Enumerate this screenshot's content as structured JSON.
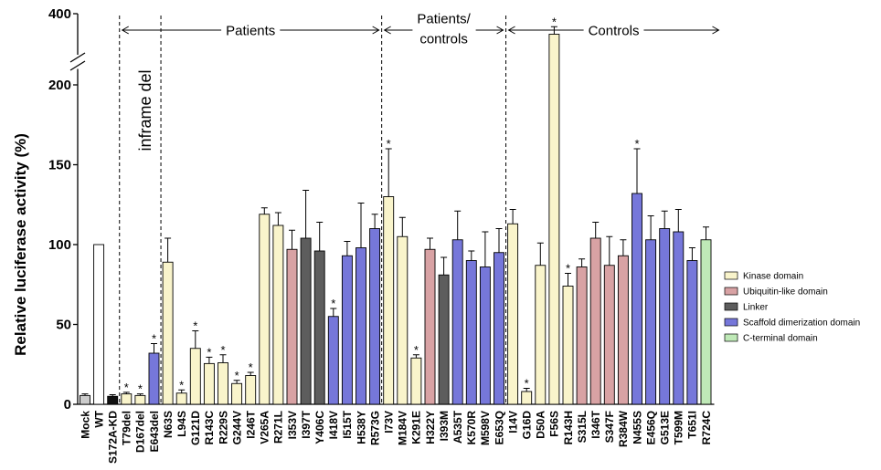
{
  "chart_data": {
    "type": "bar",
    "title": "",
    "xlabel": "",
    "ylabel": "Relative luciferase activity (%)",
    "ylim": [
      0,
      210
    ],
    "ylim_upper": [
      340,
      400
    ],
    "axis_break": true,
    "yticks": [
      0,
      50,
      100,
      150,
      200,
      400
    ],
    "grid": false,
    "legend_position": "right",
    "categories": [
      "Mock",
      "WT",
      "S172A-KD",
      "T79del",
      "D167del",
      "E643del",
      "N63S",
      "L94S",
      "G121D",
      "R143C",
      "R229S",
      "G244V",
      "I246T",
      "V265A",
      "R271L",
      "I353V",
      "I397T",
      "Y406C",
      "I418V",
      "I515T",
      "H538Y",
      "R573G",
      "I73V",
      "M184V",
      "K291E",
      "H322Y",
      "I393M",
      "A535T",
      "K570R",
      "M598V",
      "E653Q",
      "I14V",
      "G16D",
      "D50A",
      "F56S",
      "R143H",
      "S315L",
      "I346T",
      "S347F",
      "R384W",
      "N455S",
      "E456Q",
      "G513E",
      "T599M",
      "T651I",
      "R724C"
    ],
    "values": [
      5.5,
      100,
      5,
      6.5,
      5.5,
      32,
      89,
      7,
      35,
      25.5,
      26,
      13,
      18,
      119,
      112,
      97,
      104,
      96,
      55,
      93,
      98,
      110,
      130,
      105,
      29,
      97,
      81,
      103,
      90,
      86,
      95,
      113,
      8,
      87,
      370,
      74,
      86,
      104,
      87,
      93,
      132,
      103,
      110,
      108,
      90,
      103
    ],
    "errors": [
      1,
      0,
      1,
      1,
      1,
      6,
      15,
      2,
      11,
      4,
      5,
      2,
      2,
      4,
      8,
      12,
      30,
      18,
      5,
      9,
      28,
      9,
      30,
      12,
      2,
      7,
      11,
      18,
      6,
      22,
      15,
      9,
      2,
      14,
      11,
      8,
      5,
      10,
      18,
      10,
      28,
      15,
      11,
      14,
      8,
      8
    ],
    "domains": [
      "control",
      "wt",
      "kd",
      "kinase",
      "kinase",
      "scaffold",
      "kinase",
      "kinase",
      "kinase",
      "kinase",
      "kinase",
      "kinase",
      "kinase",
      "kinase",
      "kinase",
      "ubiquitin",
      "linker",
      "linker",
      "scaffold",
      "scaffold",
      "scaffold",
      "scaffold",
      "kinase",
      "kinase",
      "kinase",
      "ubiquitin",
      "linker",
      "scaffold",
      "scaffold",
      "scaffold",
      "scaffold",
      "kinase",
      "kinase",
      "kinase",
      "kinase",
      "kinase",
      "ubiquitin",
      "ubiquitin",
      "ubiquitin",
      "ubiquitin",
      "scaffold",
      "scaffold",
      "scaffold",
      "scaffold",
      "scaffold",
      "cterminal"
    ],
    "significance_marker": "*",
    "significant": [
      "T79del",
      "D167del",
      "E643del",
      "L94S",
      "G121D",
      "R143C",
      "R229S",
      "G244V",
      "I246T",
      "I418V",
      "I73V",
      "K291E",
      "G16D",
      "F56S",
      "R143H",
      "N455S"
    ],
    "colors": {
      "control": "#cccccc",
      "wt": "#ffffff",
      "kd": "#111111",
      "kinase": "#f9f4cb",
      "ubiquitin": "#d8a2a4",
      "linker": "#5d5d5d",
      "scaffold": "#7677da",
      "cterminal": "#bfe9b7"
    },
    "legend": [
      {
        "label": "Kinase domain",
        "domain": "kinase"
      },
      {
        "label": "Ubiquitin-like domain",
        "domain": "ubiquitin"
      },
      {
        "label": "Linker",
        "domain": "linker"
      },
      {
        "label": "Scaffold dimerization domain",
        "domain": "scaffold"
      },
      {
        "label": "C-terminal domain",
        "domain": "cterminal"
      }
    ],
    "groups": [
      {
        "label": "Patients",
        "from": "T79del",
        "to": "R573G"
      },
      {
        "label_lines": [
          "Patients/",
          "controls"
        ],
        "from": "I73V",
        "to": "E653Q"
      },
      {
        "label": "Controls",
        "from": "I14V",
        "to": "R724C"
      }
    ],
    "subgroups": [
      {
        "label": "inframe del",
        "from": "T79del",
        "to": "E643del"
      }
    ]
  }
}
